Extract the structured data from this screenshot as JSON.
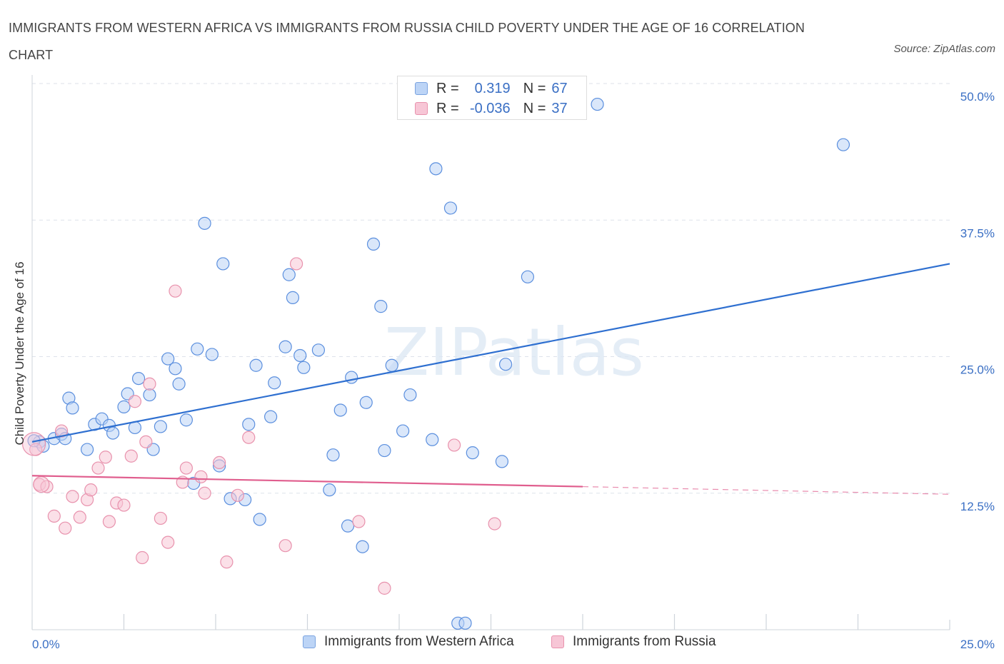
{
  "title": "IMMIGRANTS FROM WESTERN AFRICA VS IMMIGRANTS FROM RUSSIA CHILD POVERTY UNDER THE AGE OF 16 CORRELATION CHART",
  "source": "Source: ZipAtlas.com",
  "watermark": "ZIPatlas",
  "legend": {
    "rows": [
      {
        "r_label": "R =",
        "r_value": "0.319",
        "n_label": "N =",
        "n_value": "67",
        "color": "#bcd4f6"
      },
      {
        "r_label": "R =",
        "r_value": "-0.036",
        "n_label": "N =",
        "n_value": "37",
        "color": "#f7c6d6"
      }
    ]
  },
  "bottom_legend": [
    "Immigrants from Western Africa",
    "Immigrants from Russia"
  ],
  "chart_data": {
    "type": "scatter",
    "ylabel": "Child Poverty Under the Age of 16",
    "xlim": [
      0,
      25
    ],
    "ylim": [
      0,
      50
    ],
    "x_tick_labels": [
      "0.0%",
      "25.0%"
    ],
    "y_ticks": [
      12.5,
      25.0,
      37.5,
      50.0
    ],
    "y_tick_labels": [
      "12.5%",
      "25.0%",
      "37.5%",
      "50.0%"
    ],
    "grid": true,
    "series": [
      {
        "name": "Immigrants from Western Africa",
        "color": "#5b8fde",
        "fill": "#bcd4f6",
        "trend": {
          "x": [
            0,
            25
          ],
          "y": [
            17.2,
            33.5
          ],
          "color": "#2e6fd0"
        },
        "points": [
          [
            0.2,
            17.2
          ],
          [
            0.3,
            16.8
          ],
          [
            0.6,
            17.5
          ],
          [
            0.8,
            17.9
          ],
          [
            0.9,
            17.5
          ],
          [
            1.0,
            21.2
          ],
          [
            1.1,
            20.3
          ],
          [
            1.5,
            16.5
          ],
          [
            1.7,
            18.8
          ],
          [
            1.9,
            19.3
          ],
          [
            2.1,
            18.7
          ],
          [
            2.2,
            18.0
          ],
          [
            2.5,
            20.4
          ],
          [
            2.6,
            21.6
          ],
          [
            2.8,
            18.5
          ],
          [
            2.9,
            23.0
          ],
          [
            3.2,
            21.5
          ],
          [
            3.3,
            16.5
          ],
          [
            3.5,
            18.6
          ],
          [
            3.7,
            24.8
          ],
          [
            3.9,
            23.9
          ],
          [
            4.0,
            22.5
          ],
          [
            4.2,
            19.2
          ],
          [
            4.4,
            13.4
          ],
          [
            4.5,
            25.7
          ],
          [
            4.7,
            37.2
          ],
          [
            4.9,
            25.2
          ],
          [
            5.1,
            15.0
          ],
          [
            5.2,
            33.5
          ],
          [
            5.4,
            12.0
          ],
          [
            5.8,
            11.9
          ],
          [
            5.9,
            18.8
          ],
          [
            6.1,
            24.2
          ],
          [
            6.2,
            10.1
          ],
          [
            6.5,
            19.5
          ],
          [
            6.6,
            22.6
          ],
          [
            6.9,
            25.9
          ],
          [
            7.0,
            32.5
          ],
          [
            7.1,
            30.4
          ],
          [
            7.3,
            25.1
          ],
          [
            7.4,
            24.0
          ],
          [
            7.8,
            25.6
          ],
          [
            8.1,
            12.8
          ],
          [
            8.2,
            16.0
          ],
          [
            8.4,
            20.1
          ],
          [
            8.6,
            9.5
          ],
          [
            8.7,
            23.1
          ],
          [
            9.0,
            7.6
          ],
          [
            9.1,
            20.8
          ],
          [
            9.3,
            35.3
          ],
          [
            9.5,
            29.6
          ],
          [
            9.6,
            16.4
          ],
          [
            9.8,
            24.2
          ],
          [
            10.1,
            18.2
          ],
          [
            10.3,
            21.5
          ],
          [
            10.9,
            17.4
          ],
          [
            11.0,
            42.2
          ],
          [
            11.4,
            38.6
          ],
          [
            11.6,
            0.6
          ],
          [
            11.8,
            0.6
          ],
          [
            12.0,
            16.2
          ],
          [
            12.8,
            15.4
          ],
          [
            12.9,
            24.3
          ],
          [
            13.5,
            32.3
          ],
          [
            15.4,
            48.1
          ],
          [
            22.1,
            44.4
          ],
          [
            0.05,
            17.3
          ]
        ]
      },
      {
        "name": "Immigrants from Russia",
        "color": "#e892ad",
        "fill": "#f7c6d6",
        "trend": {
          "x": [
            0,
            15
          ],
          "y": [
            14.1,
            13.1
          ],
          "dash_to": [
            25,
            12.4
          ],
          "color": "#e05e8e"
        },
        "points": [
          [
            0.1,
            16.5
          ],
          [
            0.2,
            13.3
          ],
          [
            0.4,
            13.1
          ],
          [
            0.6,
            10.4
          ],
          [
            0.8,
            18.2
          ],
          [
            0.9,
            9.3
          ],
          [
            1.1,
            12.2
          ],
          [
            1.3,
            10.3
          ],
          [
            1.5,
            11.9
          ],
          [
            1.6,
            12.8
          ],
          [
            1.8,
            14.8
          ],
          [
            2.0,
            15.8
          ],
          [
            2.1,
            9.9
          ],
          [
            2.3,
            11.6
          ],
          [
            2.5,
            11.4
          ],
          [
            2.7,
            15.9
          ],
          [
            2.8,
            20.9
          ],
          [
            3.0,
            6.6
          ],
          [
            3.1,
            17.2
          ],
          [
            3.2,
            22.5
          ],
          [
            3.5,
            10.2
          ],
          [
            3.7,
            8.0
          ],
          [
            3.9,
            31.0
          ],
          [
            4.1,
            13.5
          ],
          [
            4.2,
            14.8
          ],
          [
            4.6,
            14.0
          ],
          [
            4.7,
            12.5
          ],
          [
            5.1,
            15.3
          ],
          [
            5.3,
            6.2
          ],
          [
            5.6,
            12.3
          ],
          [
            5.9,
            17.6
          ],
          [
            6.9,
            7.7
          ],
          [
            7.2,
            33.5
          ],
          [
            8.9,
            9.9
          ],
          [
            9.6,
            3.8
          ],
          [
            11.5,
            16.9
          ],
          [
            12.6,
            9.7
          ]
        ]
      }
    ]
  }
}
